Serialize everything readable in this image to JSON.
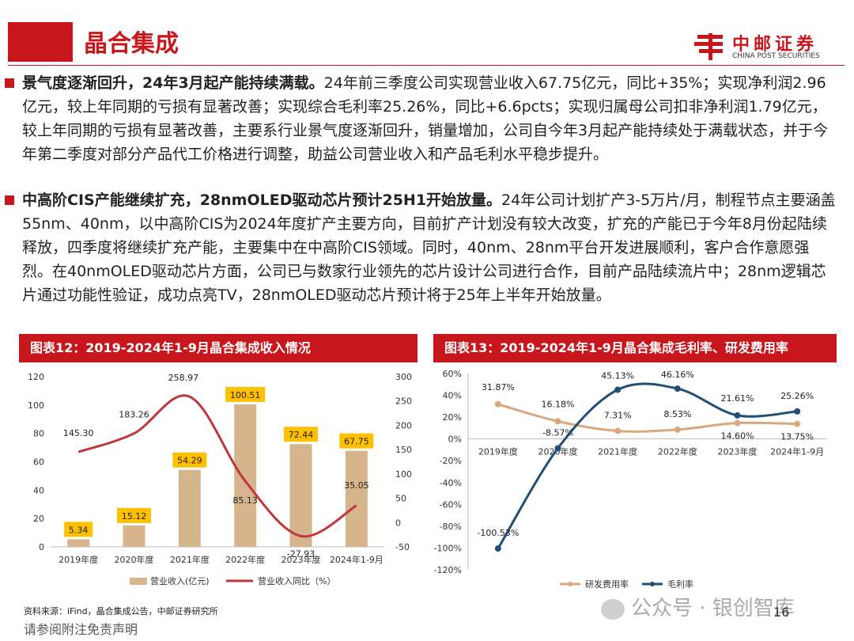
{
  "header": {
    "title": "晶合集成",
    "logo_cn": "中邮证券",
    "logo_en": "CHINA POST SECURITIES",
    "brand_color": "#c8161d"
  },
  "bullets": [
    {
      "bold": "景气度逐渐回升，24年3月起产能持续满载。",
      "text": "24年前三季度公司实现营业收入67.75亿元，同比+35%；实现净利润2.96亿元，较上年同期的亏损有显著改善；实现综合毛利率25.26%，同比+6.6pcts；实现归属母公司扣非净利润1.79亿元，较上年同期的亏损有显著改善，主要系行业景气度逐渐回升，销量增加，公司自今年3月起产能持续处于满载状态，并于今年第二季度对部分产品代工价格进行调整，助益公司营业收入和产品毛利水平稳步提升。"
    },
    {
      "bold": "中高阶CIS产能继续扩充，28nmOLED驱动芯片预计25H1开始放量。",
      "text": "24年公司计划扩产3-5万片/月，制程节点主要涵盖55nm、40nm，以中高阶CIS为2024年度扩产主要方向，目前扩产计划没有较大改变，扩充的产能已于今年8月份起陆续释放，四季度将继续扩充产能，主要集中在中高阶CIS领域。同时，40nm、28nm平台开发进展顺利，客户合作意愿强烈。在40nmOLED驱动芯片方面，公司已与数家行业领先的芯片设计公司进行合作，目前产品陆续流片中；28nm逻辑芯片通过功能性验证，成功点亮TV，28nmOLED驱动芯片预计将于25年上半年开始放量。"
    }
  ],
  "chart_data": [
    {
      "type": "bar",
      "title": "图表12：2019-2024年1-9月晶合集成收入情况",
      "categories": [
        "2019年度",
        "2020年度",
        "2021年度",
        "2022年度",
        "2023年度",
        "2024年1-9月"
      ],
      "series": [
        {
          "name": "营业收入(亿元)",
          "type": "bar",
          "axis": "left",
          "values": [
            5.34,
            15.12,
            54.29,
            100.51,
            72.44,
            67.75
          ],
          "color": "#d6b48c"
        },
        {
          "name": "营业收入同比（%）",
          "type": "line",
          "axis": "right",
          "values": [
            145.3,
            183.26,
            258.97,
            85.13,
            -27.93,
            35.05
          ],
          "color": "#c0363c"
        }
      ],
      "ylim_left": [
        0,
        120
      ],
      "yticks_left": [
        0,
        20,
        40,
        60,
        80,
        100,
        120
      ],
      "ylim_right": [
        -50,
        300
      ],
      "yticks_right": [
        -50,
        0,
        50,
        100,
        150,
        200,
        250,
        300
      ],
      "label_box_color": "#ffc000",
      "legend": "bottom"
    },
    {
      "type": "line",
      "title": "图表13：2019-2024年1-9月晶合集成毛利率、研发费用率",
      "categories": [
        "2019年度",
        "2020年度",
        "2021年度",
        "2022年度",
        "2023年度",
        "2024年1-9月"
      ],
      "series": [
        {
          "name": "研发费用率",
          "values": [
            31.87,
            16.18,
            7.31,
            8.53,
            14.6,
            13.75
          ],
          "labels": [
            "31.87%",
            "16.18%",
            "7.31%",
            "8.53%",
            "14.60%",
            "13.75%"
          ],
          "color": "#d9a97d"
        },
        {
          "name": "毛利率",
          "values": [
            -100.53,
            -8.57,
            45.13,
            46.16,
            21.61,
            25.26
          ],
          "labels": [
            "-100.53%",
            "-8.57%",
            "45.13%",
            "46.16%",
            "21.61%",
            "25.26%"
          ],
          "color": "#1f4e79"
        }
      ],
      "ylim": [
        -120,
        60
      ],
      "yticks": [
        "60%",
        "40%",
        "20%",
        "0%",
        "-20%",
        "-40%",
        "-60%",
        "-80%",
        "-100%",
        "-120%"
      ],
      "legend": "bottom"
    }
  ],
  "footer": {
    "source": "资料来源：iFind，晶合集成公告，中邮证券研究所",
    "disclaimer": "请参阅附注免责声明",
    "page": "16",
    "watermark": "公众号 · 银创智库"
  }
}
